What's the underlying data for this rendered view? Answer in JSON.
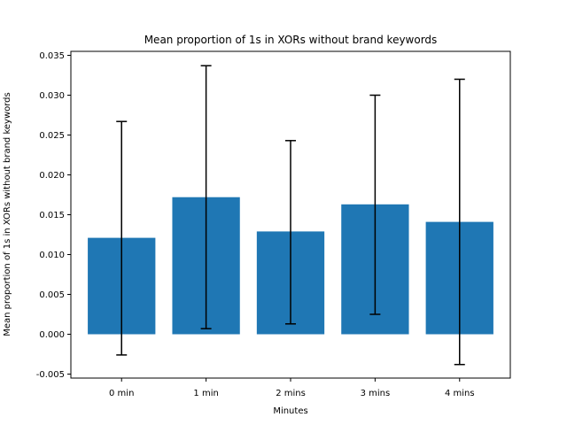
{
  "chart_data": {
    "type": "bar",
    "title": "Mean proportion of 1s in XORs without brand keywords",
    "xlabel": "Minutes",
    "ylabel": "Mean proportion of 1s in XORs without brand keywords",
    "categories": [
      "0 min",
      "1 min",
      "2 mins",
      "3 mins",
      "4 mins"
    ],
    "values": [
      0.0121,
      0.0172,
      0.0129,
      0.0163,
      0.0141
    ],
    "error_low": [
      -0.0026,
      0.0007,
      0.0013,
      0.0025,
      -0.0038
    ],
    "error_high": [
      0.0267,
      0.0337,
      0.0243,
      0.03,
      0.032
    ],
    "ylim": [
      -0.0055,
      0.0355
    ],
    "yticks": [
      "-0.005",
      "0.000",
      "0.005",
      "0.010",
      "0.015",
      "0.020",
      "0.025",
      "0.030",
      "0.035"
    ],
    "bar_color": "#1f77b4",
    "error_color": "#000000",
    "grid": false,
    "legend": "none"
  }
}
